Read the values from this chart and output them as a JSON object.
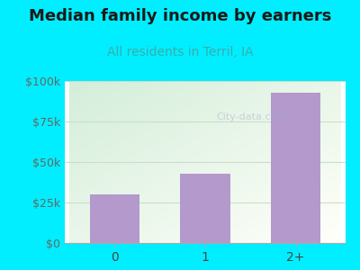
{
  "categories": [
    "0",
    "1",
    "2+"
  ],
  "values": [
    30000,
    43000,
    93000
  ],
  "bar_color": "#b399cc",
  "title": "Median family income by earners",
  "subtitle": "All residents in Terril, IA",
  "title_fontsize": 13,
  "subtitle_fontsize": 10,
  "title_color": "#1a1a1a",
  "subtitle_color": "#3aacac",
  "ylim": [
    0,
    100000
  ],
  "yticks": [
    0,
    25000,
    50000,
    75000,
    100000
  ],
  "ytick_labels": [
    "$0",
    "$25k",
    "$50k",
    "$75k",
    "$100k"
  ],
  "bg_color": "#00eeff",
  "plot_bg_topleft": "#d4eeda",
  "plot_bg_bottomright": "#f8fffa",
  "grid_color": "#ccddcc",
  "watermark": "City-data.com",
  "bar_width": 0.55
}
